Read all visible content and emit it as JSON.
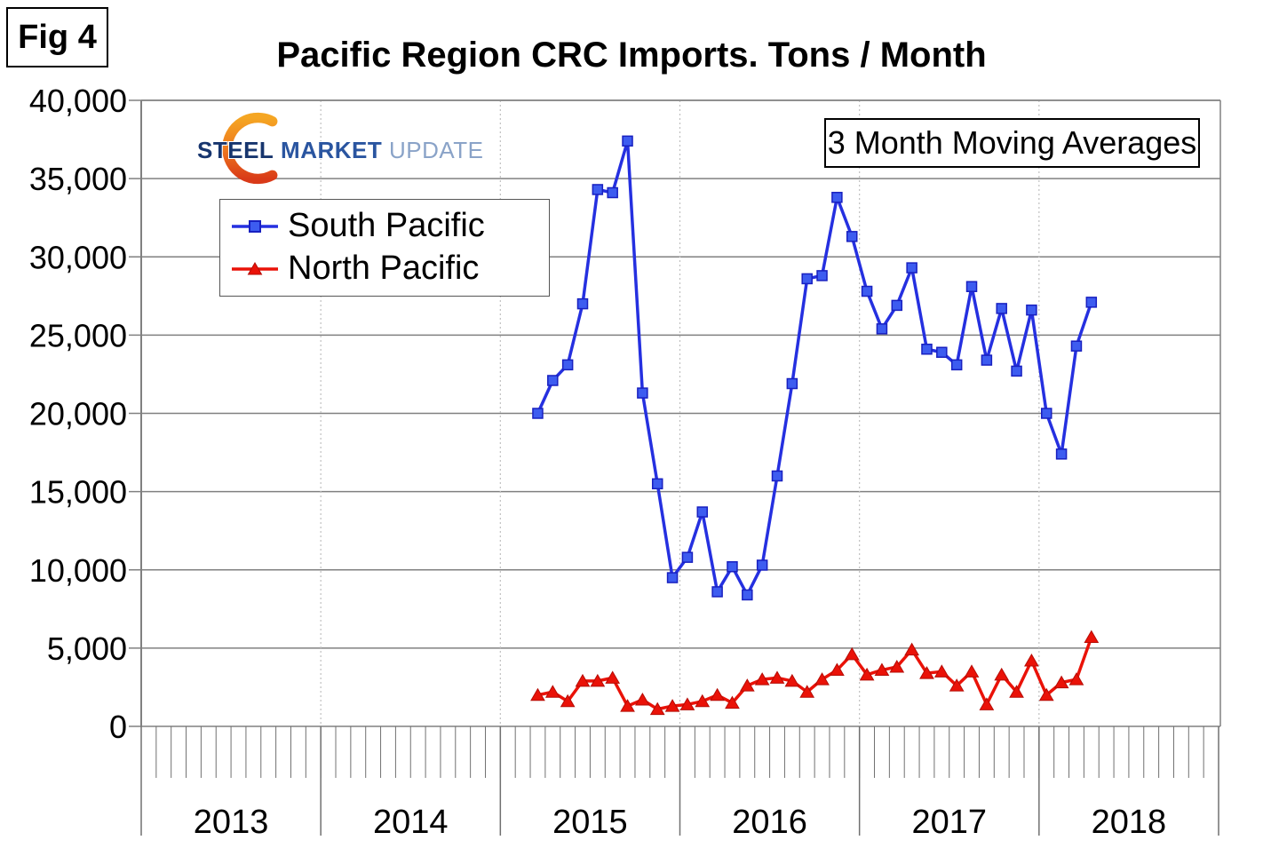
{
  "fig_label": "Fig 4",
  "annotation_box": "3 Month Moving Averages",
  "logo": {
    "part1": "STEEL",
    "part2": "MARKET",
    "part3": "UPDATE"
  },
  "colors": {
    "south": "#2530E0",
    "south_fill": "#3D5CF0",
    "south_edge": "#1820C0",
    "north": "#EA1208",
    "north_edge": "#B50C05",
    "grid": "#808080",
    "grid_dashed": "#C0C0C0",
    "tick": "#707070",
    "text": "#000000"
  },
  "chart_data": {
    "type": "line",
    "title": "Pacific Region CRC Imports. Tons / Month",
    "annotation": "3 Month Moving Averages",
    "xlabel": "",
    "ylabel": "",
    "ylim": [
      0,
      40000
    ],
    "grid": "horizontal solid, vertical dashed at year starts",
    "legend_position": "upper-left box",
    "y_ticks": [
      0,
      5000,
      10000,
      15000,
      20000,
      25000,
      30000,
      35000,
      40000
    ],
    "y_tick_labels": [
      "0",
      "5,000",
      "10,000",
      "15,000",
      "20,000",
      "25,000",
      "30,000",
      "35,000",
      "40,000"
    ],
    "x_years": [
      "2013",
      "2014",
      "2015",
      "2016",
      "2017",
      "2018"
    ],
    "x_axis_start_year": 2013,
    "months": [
      "2015-03",
      "2015-04",
      "2015-05",
      "2015-06",
      "2015-07",
      "2015-08",
      "2015-09",
      "2015-10",
      "2015-11",
      "2015-12",
      "2016-01",
      "2016-02",
      "2016-03",
      "2016-04",
      "2016-05",
      "2016-06",
      "2016-07",
      "2016-08",
      "2016-09",
      "2016-10",
      "2016-11",
      "2016-12",
      "2017-01",
      "2017-02",
      "2017-03",
      "2017-04",
      "2017-05",
      "2017-06",
      "2017-07",
      "2017-08",
      "2017-09",
      "2017-10",
      "2017-11",
      "2017-12",
      "2018-01",
      "2018-02",
      "2018-03",
      "2018-04"
    ],
    "series": [
      {
        "name": "South Pacific",
        "marker": "square",
        "values": [
          20000,
          22100,
          23100,
          27000,
          34300,
          34100,
          37400,
          21300,
          15500,
          9500,
          10800,
          13700,
          8600,
          10200,
          8400,
          10300,
          16000,
          21900,
          28600,
          28800,
          33800,
          31300,
          27800,
          25400,
          26900,
          29300,
          24100,
          23900,
          23100,
          28100,
          23400,
          26700,
          22700,
          26600,
          20000,
          17400,
          24300,
          27100
        ]
      },
      {
        "name": "North Pacific",
        "marker": "triangle",
        "values": [
          2000,
          2200,
          1600,
          2900,
          2900,
          3100,
          1300,
          1700,
          1100,
          1300,
          1400,
          1600,
          2000,
          1500,
          2600,
          3000,
          3100,
          2900,
          2200,
          3000,
          3600,
          4600,
          3300,
          3600,
          3800,
          4900,
          3400,
          3500,
          2600,
          3500,
          1400,
          3300,
          2200,
          4200,
          2000,
          2800,
          3000,
          5700
        ]
      }
    ]
  }
}
